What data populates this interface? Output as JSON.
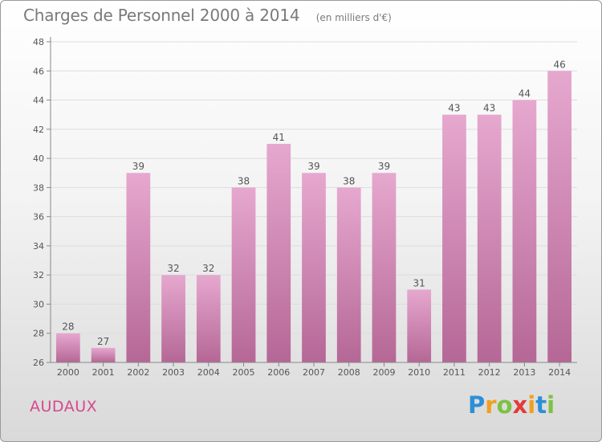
{
  "title": "Charges de Personnel 2000 à 2014",
  "unit_note": "(en milliers d'€)",
  "commune": "AUDAUX",
  "brand": {
    "letters": [
      "P",
      "r",
      "o",
      "x",
      "i",
      "t",
      "i"
    ],
    "colors": [
      "#2d8fd6",
      "#f0a020",
      "#7cc242",
      "#e23b3b",
      "#f0a020",
      "#2d8fd6",
      "#7cc242"
    ]
  },
  "colors": {
    "bar_top": "#e6a8cf",
    "bar_bottom": "#b56796",
    "axis": "#888888",
    "grid": "#dddddd",
    "text": "#555555"
  },
  "chart_data": {
    "type": "bar",
    "categories": [
      "2000",
      "2001",
      "2002",
      "2003",
      "2004",
      "2005",
      "2006",
      "2007",
      "2008",
      "2009",
      "2010",
      "2011",
      "2012",
      "2013",
      "2014"
    ],
    "values": [
      28,
      27,
      39,
      32,
      32,
      38,
      41,
      39,
      38,
      39,
      31,
      43,
      43,
      44,
      46
    ],
    "ylim": [
      26,
      48
    ],
    "yticks": [
      26,
      28,
      30,
      32,
      34,
      36,
      38,
      40,
      42,
      44,
      46,
      48
    ],
    "grid": true,
    "xlabel": "",
    "ylabel": ""
  }
}
